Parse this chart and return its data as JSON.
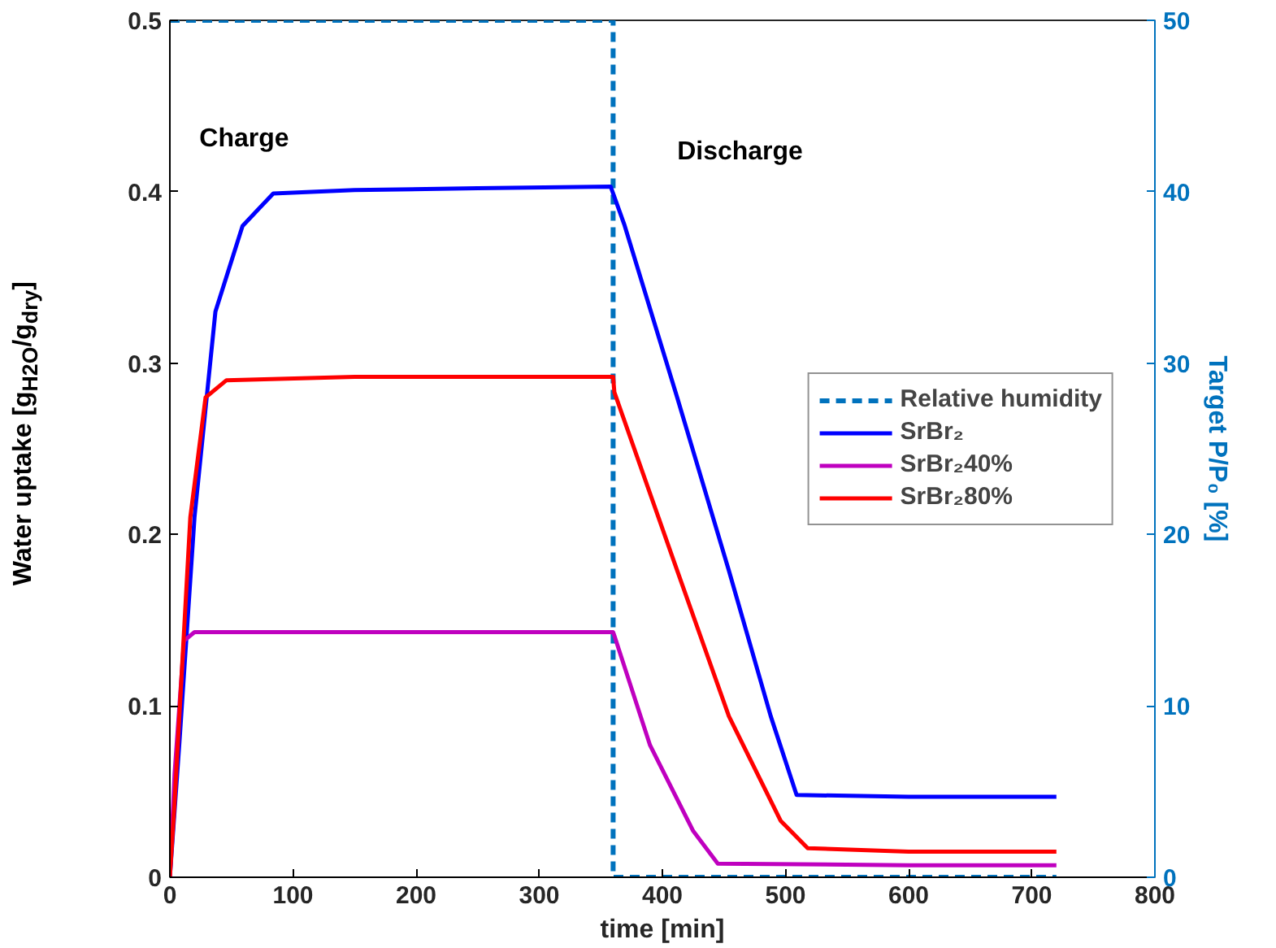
{
  "chart_data": {
    "type": "line",
    "xlabel": "time [min]",
    "ylabel": "Water uptake [g$_{H2O}$/g$_{dry}$]",
    "y2label": "Target P/P₀ [%]",
    "xlim": [
      0,
      800
    ],
    "xticks": [
      0,
      100,
      200,
      300,
      400,
      500,
      600,
      700,
      800
    ],
    "ylim": [
      0,
      0.5
    ],
    "yticks": [
      0,
      0.1,
      0.2,
      0.3,
      0.4,
      0.5
    ],
    "y2lim": [
      0,
      50
    ],
    "y2ticks": [
      0,
      10,
      20,
      30,
      40,
      50
    ],
    "grid": false,
    "legend": "right",
    "line_style": "solid",
    "annotations": [
      "Charge",
      "Discharge"
    ],
    "series": [
      {
        "name": "Relative humidity",
        "color": "#0072bd",
        "axis": "y2",
        "line_style": "dashed",
        "x": [
          0,
          360,
          360,
          720
        ],
        "values": [
          50,
          50,
          0,
          0
        ]
      },
      {
        "name": "SrBr₂",
        "color": "#0000ff",
        "x": [
          0,
          7.7,
          20,
          37,
          59,
          84,
          150,
          250,
          358,
          369,
          412,
          454,
          488,
          509,
          600,
          720
        ],
        "values": [
          0,
          0.078,
          0.21,
          0.33,
          0.38,
          0.399,
          0.401,
          0.402,
          0.403,
          0.381,
          0.28,
          0.179,
          0.094,
          0.048,
          0.047,
          0.047
        ]
      },
      {
        "name": "SrBr₂40%",
        "color": "#bf00bf",
        "x": [
          0,
          3.8,
          11.5,
          20,
          150,
          360,
          361,
          390,
          425,
          445,
          600,
          720
        ],
        "values": [
          0,
          0.06,
          0.138,
          0.143,
          0.143,
          0.143,
          0.141,
          0.077,
          0.027,
          0.008,
          0.007,
          0.007
        ]
      },
      {
        "name": "SrBr₂80%",
        "color": "#ff0000",
        "x": [
          0,
          3.8,
          16.6,
          29,
          46,
          150,
          360,
          361,
          412,
          454,
          496,
          518,
          600,
          720
        ],
        "values": [
          0,
          0.043,
          0.21,
          0.28,
          0.29,
          0.292,
          0.292,
          0.283,
          0.179,
          0.094,
          0.033,
          0.017,
          0.015,
          0.015
        ]
      }
    ]
  }
}
